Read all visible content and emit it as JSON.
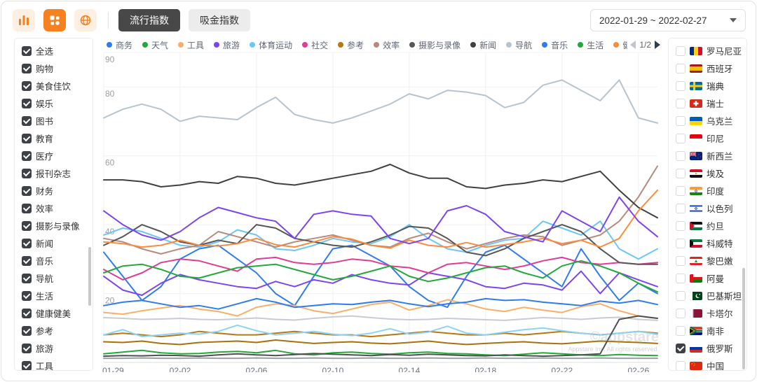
{
  "header": {
    "icons": [
      {
        "name": "bar-chart-icon",
        "active": false
      },
      {
        "name": "apps-grid-icon",
        "active": true
      },
      {
        "name": "globe-icon",
        "active": false
      }
    ],
    "tabs": [
      {
        "label": "流行指数",
        "active": true
      },
      {
        "label": "吸金指数",
        "active": false
      }
    ],
    "date_range": "2022-01-29 ~ 2022-02-27",
    "accent_color": "#f5821f"
  },
  "sidebar_left": {
    "items": [
      {
        "label": "全选",
        "checked": true
      },
      {
        "label": "购物",
        "checked": true
      },
      {
        "label": "美食佳饮",
        "checked": true
      },
      {
        "label": "娱乐",
        "checked": true
      },
      {
        "label": "图书",
        "checked": true
      },
      {
        "label": "教育",
        "checked": true
      },
      {
        "label": "医疗",
        "checked": true
      },
      {
        "label": "报刊杂志",
        "checked": true
      },
      {
        "label": "财务",
        "checked": true
      },
      {
        "label": "效率",
        "checked": true
      },
      {
        "label": "摄影与录像",
        "checked": true
      },
      {
        "label": "新闻",
        "checked": true
      },
      {
        "label": "音乐",
        "checked": true
      },
      {
        "label": "导航",
        "checked": true
      },
      {
        "label": "生活",
        "checked": true
      },
      {
        "label": "健康健美",
        "checked": true
      },
      {
        "label": "参考",
        "checked": true
      },
      {
        "label": "旅游",
        "checked": true
      },
      {
        "label": "工具",
        "checked": true
      }
    ]
  },
  "sidebar_right": {
    "countries": [
      {
        "label": "罗马尼亚",
        "flag": "ro",
        "checked": false
      },
      {
        "label": "西班牙",
        "flag": "es",
        "checked": false
      },
      {
        "label": "瑞典",
        "flag": "se",
        "checked": false
      },
      {
        "label": "瑞士",
        "flag": "ch",
        "checked": false
      },
      {
        "label": "乌克兰",
        "flag": "ua",
        "checked": false
      },
      {
        "label": "印尼",
        "flag": "id",
        "checked": false
      },
      {
        "label": "新西兰",
        "flag": "nz",
        "checked": false
      },
      {
        "label": "埃及",
        "flag": "eg",
        "checked": false
      },
      {
        "label": "印度",
        "flag": "in",
        "checked": false
      },
      {
        "label": "以色列",
        "flag": "il",
        "checked": false
      },
      {
        "label": "约旦",
        "flag": "jo",
        "checked": false
      },
      {
        "label": "科威特",
        "flag": "kw",
        "checked": false
      },
      {
        "label": "黎巴嫩",
        "flag": "lb",
        "checked": false
      },
      {
        "label": "阿曼",
        "flag": "om",
        "checked": false
      },
      {
        "label": "巴基斯坦",
        "flag": "pk",
        "checked": false
      },
      {
        "label": "卡塔尔",
        "flag": "qa",
        "checked": false
      },
      {
        "label": "南非",
        "flag": "za",
        "checked": false
      },
      {
        "label": "俄罗斯",
        "flag": "ru",
        "checked": true
      },
      {
        "label": "中国",
        "flag": "cn",
        "checked": false
      }
    ]
  },
  "legend": {
    "page": "1/2",
    "partial_dot_color": "#6cc7f6"
  },
  "chart": {
    "watermark_logo": "©appstare",
    "watermark_text": "Appstare Inc. All rights reserved."
  },
  "chart_data": {
    "type": "line",
    "title": "",
    "xlabel": "",
    "ylabel": "",
    "grid": true,
    "legend_position": "top",
    "y_axis": {
      "min": 0,
      "max": 90,
      "ticks": [
        20,
        40,
        60,
        80,
        90
      ]
    },
    "x_axis": {
      "tick_labels": [
        "01-29",
        "02-02",
        "02-06",
        "02-10",
        "02-14",
        "02-18",
        "02-22",
        "02-26"
      ],
      "tick_indices": [
        0,
        4,
        8,
        12,
        16,
        20,
        24,
        28
      ]
    },
    "x": [
      "01-29",
      "01-30",
      "01-31",
      "02-01",
      "02-02",
      "02-03",
      "02-04",
      "02-05",
      "02-06",
      "02-07",
      "02-08",
      "02-09",
      "02-10",
      "02-11",
      "02-12",
      "02-13",
      "02-14",
      "02-15",
      "02-16",
      "02-17",
      "02-18",
      "02-19",
      "02-20",
      "02-21",
      "02-22",
      "02-23",
      "02-24",
      "02-25",
      "02-26",
      "02-27"
    ],
    "series": [
      {
        "name": "商务",
        "color": "#2e7cf0",
        "in_legend": true,
        "values": [
          32,
          25,
          18,
          22,
          30,
          33,
          34,
          30,
          26,
          20,
          16.5,
          25,
          33,
          34,
          31,
          28,
          22,
          18,
          16,
          25,
          32,
          34,
          30,
          26,
          22,
          33,
          25,
          18,
          23,
          20
        ]
      },
      {
        "name": "天气",
        "color": "#23a83a",
        "in_legend": true,
        "values": [
          2.5,
          3,
          3.5,
          2.8,
          2.5,
          2.6,
          3,
          3.2,
          2.8,
          3.5,
          2.5,
          2.2,
          2.8,
          3,
          2.6,
          2.4,
          2.8,
          3,
          2.6,
          2.5,
          2.2,
          2,
          2.4,
          2.8,
          2.5,
          2.2,
          2,
          2.3,
          2.1,
          2
        ]
      },
      {
        "name": "工具",
        "color": "#f9ae6b",
        "in_legend": true,
        "values": [
          14.5,
          14,
          15,
          15.8,
          16.5,
          15.5,
          14.8,
          13.5,
          16,
          17,
          16.5,
          15,
          14.2,
          15.5,
          16.8,
          17.5,
          15.2,
          16.5,
          18.2,
          17,
          15.5,
          14.8,
          16,
          15.2,
          14.5,
          16.2,
          17,
          15,
          13.5,
          12.8
        ]
      },
      {
        "name": "旅游",
        "color": "#7b45f2",
        "in_legend": true,
        "values": [
          25,
          21,
          19.5,
          23,
          25.5,
          24,
          23,
          22,
          21.5,
          23.5,
          22,
          24,
          23,
          25.5,
          24,
          23,
          22.5,
          26,
          25,
          24,
          22,
          21.5,
          23,
          22.5,
          21,
          26.5,
          20,
          26,
          24,
          22
        ]
      },
      {
        "name": "体育运动",
        "color": "#6cc7f6",
        "in_legend": true,
        "values": [
          37,
          39,
          38,
          36,
          34,
          33.5,
          35,
          38.5,
          37,
          33,
          32.5,
          34,
          36,
          35,
          34.5,
          36.5,
          40,
          36,
          33,
          32,
          34,
          35.5,
          36,
          41,
          39,
          37,
          41,
          33,
          30,
          33
        ]
      },
      {
        "name": "社交",
        "color": "#e23b95",
        "in_legend": true,
        "values": [
          27,
          24,
          26,
          29,
          30,
          29.5,
          28,
          26.5,
          30,
          30.5,
          29,
          28.5,
          29,
          30,
          29.5,
          28,
          27.5,
          26,
          28.5,
          29,
          28,
          27,
          28,
          29.5,
          30.5,
          29,
          28.5,
          29,
          28.5,
          29
        ]
      },
      {
        "name": "参考",
        "color": "#b9770f",
        "in_legend": true,
        "values": [
          8,
          8.5,
          8,
          7.5,
          8,
          9,
          8.5,
          8,
          8,
          8.5,
          9,
          8.5,
          8,
          8,
          7.5,
          8,
          8.5,
          9,
          8.5,
          8,
          8,
          8.5,
          8,
          8.5,
          9,
          8.5,
          8,
          8.5,
          9,
          8.5
        ]
      },
      {
        "name": "效率",
        "color": "#b78a7c",
        "in_legend": true,
        "values": [
          36,
          35,
          33,
          31.5,
          33,
          34,
          38,
          36.5,
          35,
          33.5,
          35,
          36,
          37,
          35.5,
          34,
          33.5,
          36,
          37.5,
          35,
          33,
          34.5,
          36,
          37,
          36.5,
          34,
          35.5,
          37,
          41,
          48,
          57
        ]
      },
      {
        "name": "摄影与录像",
        "color": "#565656",
        "in_legend": true,
        "values": [
          34,
          36.5,
          40,
          38,
          35,
          34,
          35.5,
          34.5,
          40,
          39,
          36,
          35,
          34,
          33.5,
          35,
          37,
          39.5,
          39,
          36,
          32,
          31,
          33,
          36,
          38,
          40,
          38,
          33,
          29,
          28.5,
          28.5
        ]
      },
      {
        "name": "新闻",
        "color": "#3f4042",
        "in_legend": true,
        "values": [
          53,
          53,
          52.5,
          51,
          51.5,
          52.5,
          52,
          54,
          53.5,
          52,
          51.5,
          52.5,
          53.5,
          54.5,
          55.5,
          57.5,
          55,
          53.5,
          53.5,
          51,
          50.5,
          51.5,
          52,
          53,
          52.5,
          54,
          55.5,
          50,
          45,
          42
        ]
      },
      {
        "name": "导航",
        "color": "#b7c4ce",
        "in_legend": true,
        "values": [
          71,
          73.5,
          75,
          73.5,
          70,
          71.5,
          71,
          70.5,
          74,
          77,
          72,
          70.5,
          69.5,
          71,
          73,
          75,
          78,
          76.5,
          79,
          78.5,
          77.5,
          74,
          75.5,
          80.5,
          82,
          79,
          76,
          82,
          71,
          69.5
        ]
      },
      {
        "name": "音乐",
        "color": "#2e7cf0",
        "in_legend": true,
        "values": [
          16.5,
          17.5,
          18,
          17,
          16,
          16.5,
          15.5,
          17,
          18.5,
          17.5,
          16,
          16.5,
          17,
          16.8,
          17.5,
          18,
          17,
          16.2,
          17,
          17.5,
          18.5,
          18,
          18.2,
          17.5,
          17,
          16.5,
          17.8,
          17.2,
          18,
          16.8
        ]
      },
      {
        "name": "生活",
        "color": "#23a83a",
        "in_legend": true,
        "values": [
          26,
          28,
          28.5,
          27,
          25,
          24.5,
          26,
          27.5,
          28,
          28.5,
          27,
          25.5,
          24,
          25,
          26.5,
          28,
          25,
          23.5,
          24.5,
          26,
          27.5,
          28,
          26,
          24.5,
          28,
          29.5,
          28,
          26,
          23,
          20.5
        ]
      },
      {
        "name": "健康健美",
        "color": "#fb8b3e",
        "in_legend": true,
        "values": [
          35,
          34.5,
          33.5,
          34,
          35.5,
          34,
          33.8,
          34.5,
          36,
          34.2,
          33.5,
          35,
          36.5,
          35.8,
          34,
          33.2,
          35.5,
          34,
          33.5,
          34.8,
          33.5,
          34.2,
          35,
          36,
          34.5,
          35.5,
          33.5,
          36,
          44,
          50
        ]
      },
      {
        "name": "财务",
        "color": "#7b45f2",
        "in_legend": true,
        "values": [
          44,
          40,
          37,
          35.5,
          38,
          42,
          45,
          43.5,
          42,
          41,
          36,
          43,
          44,
          43,
          42.5,
          36,
          34.5,
          36,
          44,
          45.5,
          43,
          38,
          36.5,
          35,
          44,
          41,
          38,
          48,
          41,
          36.5
        ]
      },
      {
        "name": "",
        "color": "#c6ccd2",
        "in_legend": false,
        "values": [
          13,
          12.8,
          12.5,
          12.6,
          12.8,
          12.5,
          12.4,
          12.6,
          12.9,
          12.5,
          12.3,
          12.8,
          13.2,
          13.5,
          13,
          12.6,
          12.4,
          12.5,
          12.8,
          12.6,
          12.4,
          12.2,
          12.6,
          13,
          12.8,
          12.5,
          12.9,
          13.1,
          12.5,
          12.2
        ]
      },
      {
        "name": "",
        "color": "#8ad4f7",
        "in_legend": false,
        "values": [
          8,
          9.5,
          7.5,
          8,
          8.5,
          8.2,
          9,
          10.8,
          9.2,
          8,
          8.5,
          9,
          8.2,
          7.8,
          8.5,
          9.8,
          8.2,
          8.8,
          10.5,
          8.5,
          8,
          8.8,
          9.5,
          10,
          9.2,
          8.5,
          8,
          8.5,
          9,
          8.2
        ]
      },
      {
        "name": "",
        "color": "#a5720f",
        "in_legend": false,
        "values": [
          6,
          5.8,
          6.2,
          5.5,
          5.2,
          5.8,
          6,
          6.2,
          5.8,
          6.5,
          6,
          5.5,
          5.8,
          6,
          5.6,
          5.4,
          5.8,
          6.2,
          5.6,
          5.2,
          5.5,
          5.8,
          6,
          5.6,
          5.4,
          5.8,
          6.2,
          6,
          5.8,
          5.5
        ]
      },
      {
        "name": "",
        "color": "#4f4f4f",
        "in_legend": false,
        "values": [
          1.8,
          2,
          1.9,
          2.1,
          2,
          1.8,
          2.2,
          2.5,
          2.2,
          2,
          2.3,
          2.6,
          2.4,
          2.2,
          2,
          2.3,
          2.1,
          2.4,
          2.2,
          2,
          1.9,
          2.2,
          2,
          1.8,
          2,
          2.2,
          2.5,
          12.5,
          13.5,
          12.8
        ]
      },
      {
        "name": "",
        "color": "#9aa0a6",
        "in_legend": false,
        "values": [
          1.2,
          1.2,
          1.3,
          1.2,
          1.2,
          1.3,
          1.2,
          1.2,
          1.3,
          1.2,
          1.2,
          1.3,
          1.2,
          1.2,
          1.3,
          1.2,
          1.2,
          1.3,
          1.2,
          1.2,
          1.3,
          1.2,
          1.2,
          1.3,
          1.2,
          1.2,
          1.3,
          1.2,
          1.2,
          1.2
        ]
      }
    ]
  }
}
